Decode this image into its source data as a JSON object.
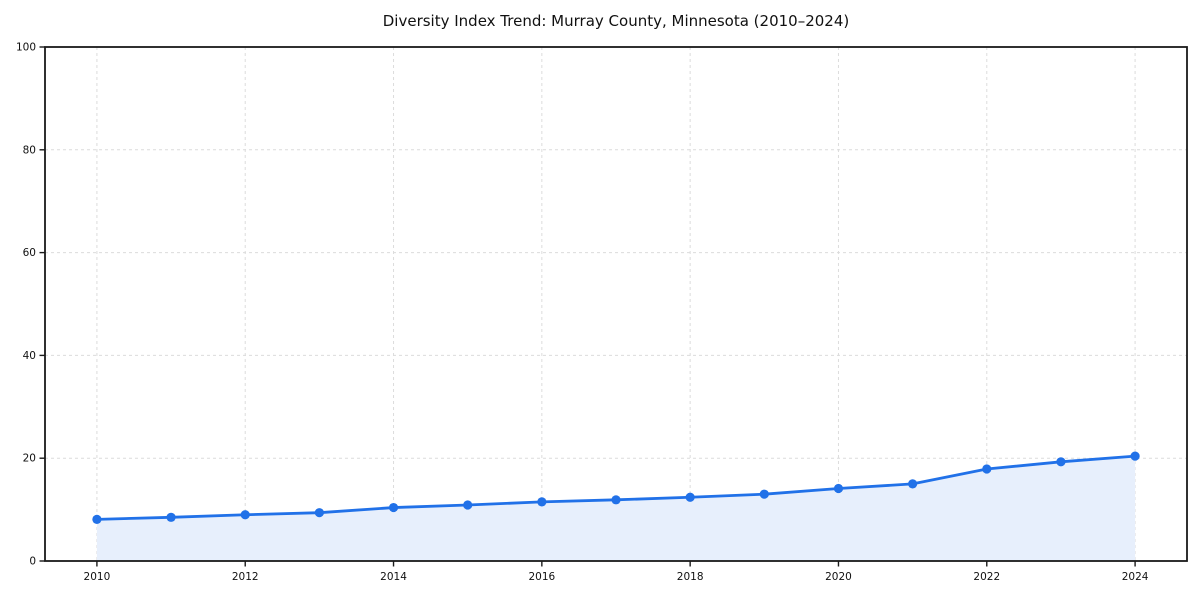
{
  "chart_data": {
    "type": "line",
    "title": "Diversity Index Trend: Murray County, Minnesota (2010–2024)",
    "x": [
      2010,
      2011,
      2012,
      2013,
      2014,
      2015,
      2016,
      2017,
      2018,
      2019,
      2020,
      2021,
      2022,
      2023,
      2024
    ],
    "series": [
      {
        "name": "Diversity Index",
        "values": [
          8.1,
          8.5,
          9.0,
          9.4,
          10.4,
          10.9,
          11.5,
          11.9,
          12.4,
          13.0,
          14.1,
          15.0,
          17.9,
          19.3,
          20.4
        ]
      }
    ],
    "xlabel": "",
    "ylabel": "",
    "xlim": [
      2009.3,
      2024.7
    ],
    "ylim": [
      0,
      100
    ],
    "xticks": [
      2010,
      2012,
      2014,
      2016,
      2018,
      2020,
      2022,
      2024
    ],
    "yticks": [
      0,
      20,
      40,
      60,
      80,
      100
    ],
    "grid": true,
    "grid_style": "dashed",
    "legend": "none",
    "area_fill": true,
    "marker": "circle",
    "colors": {
      "line": "#2171e8",
      "fill": "#e7effc",
      "grid": "#dcdcdc",
      "spine": "#1a1a1a",
      "text": "#111111"
    }
  }
}
